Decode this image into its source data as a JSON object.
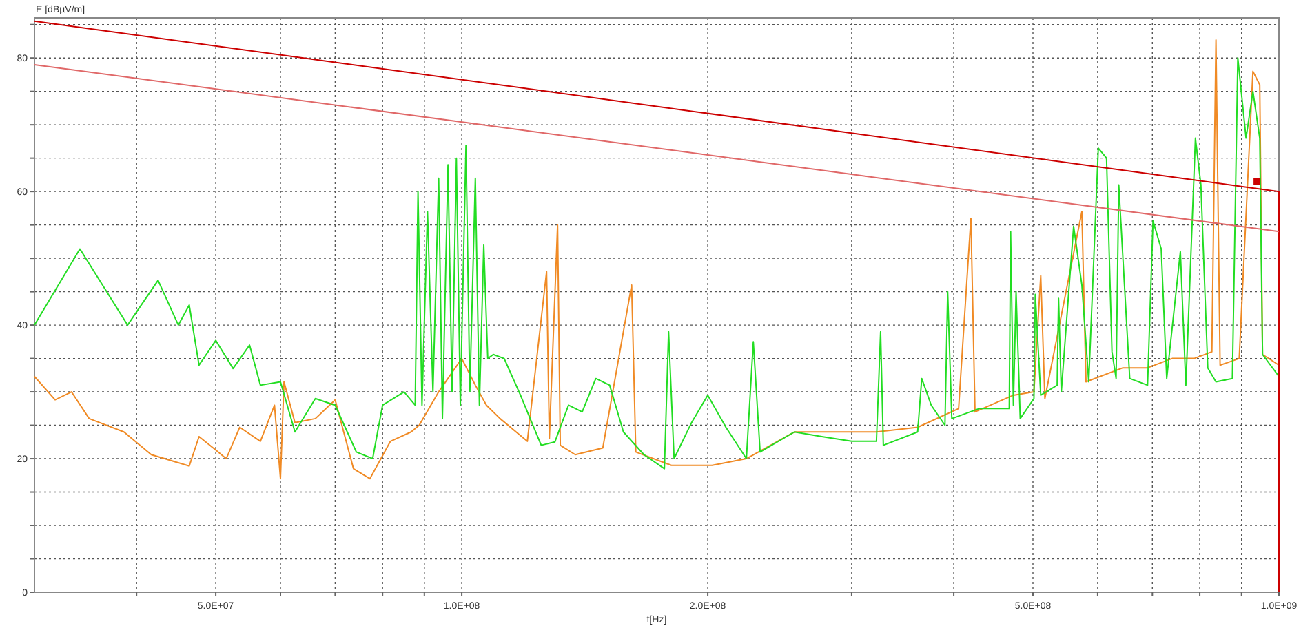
{
  "chart_data": {
    "type": "line",
    "xlabel": "f[Hz]",
    "ylabel": "E [dBµV/m]",
    "log": "x",
    "grid": true,
    "xlim": [
      30000000.0,
      1000000000.0
    ],
    "ylim": [
      0,
      86
    ],
    "xticks": [
      {
        "value": 40000000.0,
        "label": null
      },
      {
        "value": 50000000.0,
        "label": "5.0E+07"
      },
      {
        "value": 60000000.0,
        "label": null
      },
      {
        "value": 70000000.0,
        "label": null
      },
      {
        "value": 80000000.0,
        "label": null
      },
      {
        "value": 90000000.0,
        "label": null
      },
      {
        "value": 100000000.0,
        "label": "1.0E+08"
      },
      {
        "value": 200000000.0,
        "label": "2.0E+08"
      },
      {
        "value": 300000000.0,
        "label": null
      },
      {
        "value": 400000000.0,
        "label": null
      },
      {
        "value": 500000000.0,
        "label": "5.0E+08"
      },
      {
        "value": 600000000.0,
        "label": null
      },
      {
        "value": 700000000.0,
        "label": null
      },
      {
        "value": 800000000.0,
        "label": null
      },
      {
        "value": 900000000.0,
        "label": null
      },
      {
        "value": 1000000000.0,
        "label": "1.0E+09"
      }
    ],
    "yticks": [
      0,
      {
        "value": 5,
        "label": null
      },
      {
        "value": 10,
        "label": null
      },
      {
        "value": 15,
        "label": null
      },
      20,
      {
        "value": 25,
        "label": null
      },
      {
        "value": 30,
        "label": null
      },
      {
        "value": 35,
        "label": null
      },
      40,
      {
        "value": 45,
        "label": null
      },
      {
        "value": 50,
        "label": null
      },
      {
        "value": 55,
        "label": null
      },
      60,
      {
        "value": 65,
        "label": null
      },
      {
        "value": 70,
        "label": null
      },
      {
        "value": 75,
        "label": null
      },
      80,
      {
        "value": 85,
        "label": null
      }
    ],
    "series": [
      {
        "type": "line",
        "color": "#f08a24",
        "x": [
          30000000.0,
          31800000.0,
          33300000.0,
          35000000.0,
          38600000.0,
          41700000.0,
          46400000.0,
          47700000.0,
          50000000.0,
          51500000.0,
          53500000.0,
          56700000.0,
          59000000.0,
          60000000.0,
          60600000.0,
          62500000.0,
          66200000.0,
          70000000.0,
          73700000.0,
          77200000.0,
          81800000.0,
          86700000.0,
          88700000.0,
          93700000.0,
          100000000.0,
          103900000.0,
          107200000.0,
          111400000.0,
          120300000.0,
          127000000.0,
          128000000.0,
          131000000.0,
          132000000.0,
          137700000.0,
          148800000.0,
          161400000.0,
          163300000.0,
          180500000.0,
          202500000.0,
          223000000.0,
          255300000.0,
          297900000.0,
          321700000.0,
          361300000.0,
          405500000.0,
          419800000.0,
          424700000.0,
          473200000.0,
          501400000.0,
          511100000.0,
          517100000.0,
          573900000.0,
          580600000.0,
          644200000.0,
          690600000.0,
          740200000.0,
          787300000.0,
          827800000.0,
          837400000.0,
          847200000.0,
          894100000.0,
          929300000.0,
          947400000.0,
          954800000.0,
          1000000000.0
        ],
        "values": [
          32.3,
          28.8,
          30,
          26,
          24,
          20.6,
          18.9,
          23.3,
          21.3,
          20,
          24.7,
          22.6,
          28,
          17,
          31.5,
          25.4,
          26,
          28.8,
          18.5,
          17,
          22.6,
          24,
          25,
          30,
          35,
          31,
          28,
          26,
          22.6,
          48,
          23,
          55,
          22,
          20.6,
          21.6,
          46,
          21,
          19,
          19,
          20,
          24,
          24,
          24,
          24.7,
          27.5,
          56,
          27,
          29.5,
          30,
          47.4,
          29,
          57,
          31.5,
          33.6,
          33.6,
          35,
          35,
          36,
          82.7,
          34,
          35,
          78,
          76,
          35.6,
          34
        ]
      },
      {
        "type": "line",
        "color": "#22dd22",
        "x": [
          30000000.0,
          34100000.0,
          39000000.0,
          42500000.0,
          45000000.0,
          46400000.0,
          47700000.0,
          50000000.0,
          52500000.0,
          55000000.0,
          56700000.0,
          60000000.0,
          62500000.0,
          66200000.0,
          70000000.0,
          74300000.0,
          77800000.0,
          80000000.0,
          85000000.0,
          87700000.0,
          88400000.0,
          89400000.0,
          90800000.0,
          92200000.0,
          93700000.0,
          94700000.0,
          96200000.0,
          97300000.0,
          98500000.0,
          99600000.0,
          101200000.0,
          102300000.0,
          103900000.0,
          105100000.0,
          106400000.0,
          107600000.0,
          109300000.0,
          112700000.0,
          118000000.0,
          125100000.0,
          130000000.0,
          135100000.0,
          140400000.0,
          145900000.0,
          151700000.0,
          157700000.0,
          167100000.0,
          177000000.0,
          179100000.0,
          181900000.0,
          191100000.0,
          200000000.0,
          210500000.0,
          223000000.0,
          227400000.0,
          231800000.0,
          255300000.0,
          275800000.0,
          300000000.0,
          321700000.0,
          325500000.0,
          328000000.0,
          361300000.0,
          365500000.0,
          375400000.0,
          390200000.0,
          393200000.0,
          397800000.0,
          429700000.0,
          467700000.0,
          469500000.0,
          473200000.0,
          476800000.0,
          482400000.0,
          501400000.0,
          503300000.0,
          511100000.0,
          535300000.0,
          537400000.0,
          541600000.0,
          560700000.0,
          573900000.0,
          585100000.0,
          601100000.0,
          615200000.0,
          624700000.0,
          632000000.0,
          636800000.0,
          656800000.0,
          690600000.0,
          701300000.0,
          717700000.0,
          728900000.0,
          757500000.0,
          769300000.0,
          790300000.0,
          802600000.0,
          818300000.0,
          837400000.0,
          877000000.0,
          890600000.0,
          911500000.0,
          929300000.0,
          947400000.0,
          954800000.0,
          1000000000.0
        ],
        "values": [
          40,
          51.4,
          40,
          46.7,
          40,
          43,
          34,
          37.7,
          33.5,
          37,
          31,
          31.5,
          24,
          29,
          28,
          21,
          20,
          28,
          30,
          28,
          60,
          28,
          57,
          30,
          62,
          26,
          64,
          30,
          65,
          28,
          66.9,
          30,
          62,
          28,
          52,
          35,
          35.6,
          35,
          29.5,
          22,
          22.5,
          28,
          27,
          32,
          31,
          24,
          20.6,
          18.5,
          39,
          20,
          25.4,
          29.5,
          24.7,
          20,
          37.5,
          21,
          24,
          23.3,
          22.6,
          22.6,
          39,
          22,
          24,
          32,
          28,
          25,
          45,
          26,
          27.5,
          27.5,
          54,
          28,
          45,
          26,
          29,
          44.6,
          29.5,
          31,
          44,
          30,
          54.8,
          46,
          31.5,
          66.5,
          65,
          36,
          32,
          61,
          32,
          31,
          55.6,
          51.4,
          32,
          51,
          31,
          68,
          61,
          33.6,
          31.5,
          32,
          80,
          68,
          75,
          68,
          35.6,
          32.3
        ]
      },
      {
        "type": "line",
        "color": "#cc0000",
        "x": [
          30000000.0,
          1000000000.0,
          1000000000.0
        ],
        "values": [
          85.5,
          60,
          0
        ]
      },
      {
        "type": "line",
        "color": "#e06868",
        "x": [
          30000000.0,
          1000000000.0
        ],
        "values": [
          79,
          54
        ]
      },
      {
        "type": "scatter",
        "marker": "square",
        "color": "#cc0000",
        "x": [
          940000000.0
        ],
        "values": [
          61.5
        ]
      }
    ]
  }
}
